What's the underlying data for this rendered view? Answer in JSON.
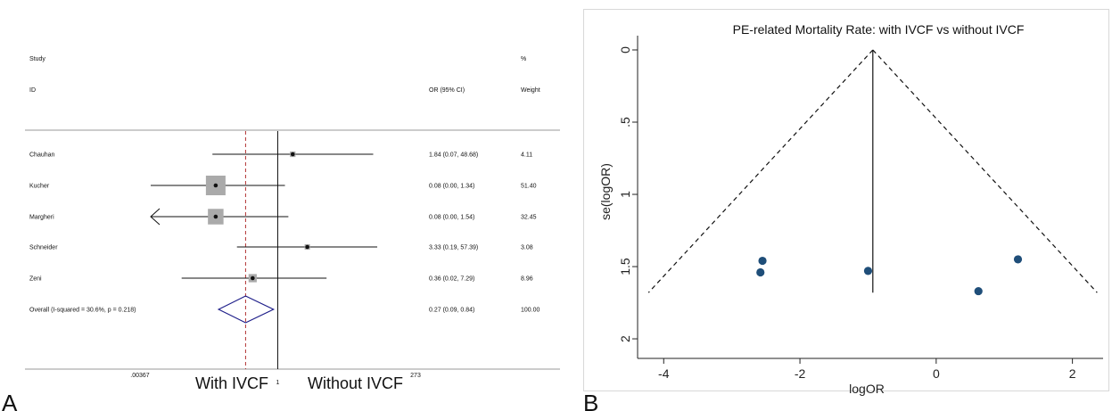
{
  "chart_data": [
    {
      "type": "forest",
      "panel_label": "A",
      "column_headers": {
        "study_line1": "Study",
        "study_line2": "ID",
        "or_header": "OR (95% CI)",
        "weight_line1": "%",
        "weight_line2": "Weight"
      },
      "x_scale": "log",
      "xlim": [
        0.00367,
        273
      ],
      "x_tick_labels": [
        ".00367",
        "1",
        "273"
      ],
      "null_value": 1,
      "pooled_estimate": 0.27,
      "direction_labels": {
        "left": "With IVCF",
        "right": "Without IVCF"
      },
      "studies": [
        {
          "name": "Chauhan",
          "or": 1.84,
          "lo": 0.07,
          "hi": 48.68,
          "or_text": "1.84 (0.07, 48.68)",
          "weight": 4.11,
          "weight_text": "4.11"
        },
        {
          "name": "Kucher",
          "or": 0.08,
          "lo": 0.0,
          "hi": 1.34,
          "or_text": "0.08 (0.00, 1.34)",
          "weight": 51.4,
          "weight_text": "51.40"
        },
        {
          "name": "Margheri",
          "or": 0.08,
          "lo": 0.0,
          "hi": 1.54,
          "or_text": "0.08 (0.00, 1.54)",
          "weight": 32.45,
          "weight_text": "32.45",
          "lower_truncated": true
        },
        {
          "name": "Schneider",
          "or": 3.33,
          "lo": 0.19,
          "hi": 57.39,
          "or_text": "3.33 (0.19, 57.39)",
          "weight": 3.08,
          "weight_text": "3.08"
        },
        {
          "name": "Zeni",
          "or": 0.36,
          "lo": 0.02,
          "hi": 7.29,
          "or_text": "0.36 (0.02, 7.29)",
          "weight": 8.96,
          "weight_text": "8.96"
        }
      ],
      "overall": {
        "label": "Overall  (I-squared = 30.6%, p = 0.218)",
        "or": 0.27,
        "lo": 0.09,
        "hi": 0.84,
        "or_text": "0.27 (0.09, 0.84)",
        "weight_text": "100.00"
      },
      "colors": {
        "box": "#aaaaaa",
        "diamond": "#1f1f8a",
        "ref_dashed": "#b03030"
      }
    },
    {
      "type": "scatter",
      "panel_label": "B",
      "title": "PE-related Mortality Rate: with IVCF vs without IVCF",
      "xlabel": "logOR",
      "ylabel": "se(logOR)",
      "xlim": [
        -4.2,
        2.45
      ],
      "ylim": [
        0,
        2.08
      ],
      "y_reversed": true,
      "x_ticks": [
        -4,
        -2,
        0,
        2
      ],
      "x_tick_labels": [
        "-4",
        "-2",
        "0",
        "2"
      ],
      "y_ticks": [
        0,
        0.5,
        1,
        1.5,
        2
      ],
      "y_tick_labels": [
        "0",
        ".5",
        "1",
        "1.5",
        "2"
      ],
      "pooled_logor": -0.93,
      "funnel_se_max": 1.68,
      "points": [
        {
          "x": -2.55,
          "y": 1.46
        },
        {
          "x": -2.58,
          "y": 1.54
        },
        {
          "x": -1.0,
          "y": 1.53
        },
        {
          "x": 0.62,
          "y": 1.67
        },
        {
          "x": 1.2,
          "y": 1.45
        }
      ],
      "colors": {
        "points": "#1f4e79",
        "lines": "#111111",
        "frame": "#cccccc"
      }
    }
  ]
}
